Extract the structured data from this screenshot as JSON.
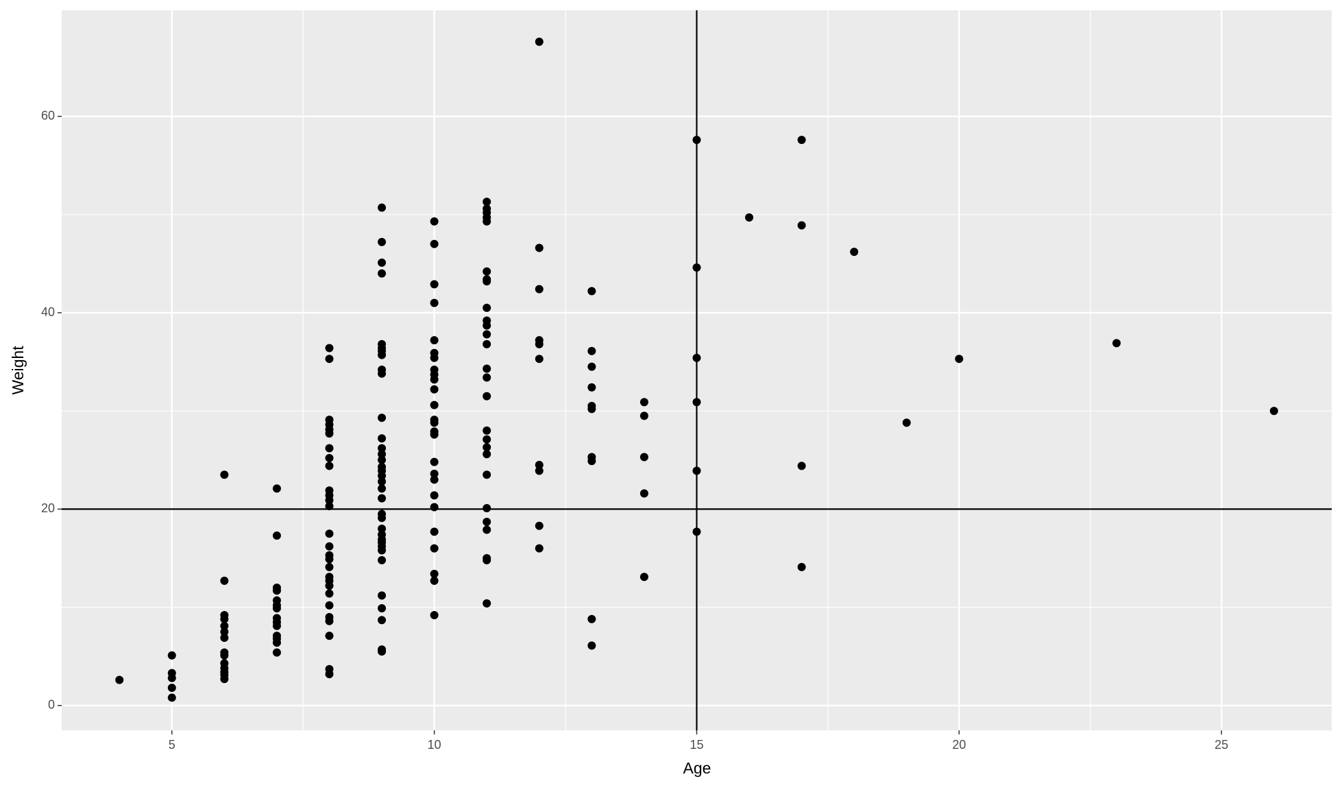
{
  "chart_data": {
    "type": "scatter",
    "x_label": "Age",
    "y_label": "Weight",
    "x": [
      4,
      5,
      5,
      5,
      5,
      5,
      6,
      6,
      6,
      6,
      6,
      6,
      6,
      6,
      6,
      6,
      6,
      6,
      6,
      6,
      7,
      7,
      7,
      7,
      7,
      7,
      7,
      7,
      7,
      7,
      7,
      7,
      7,
      7,
      8,
      8,
      8,
      8,
      8,
      8,
      8,
      8,
      8,
      8,
      8,
      8,
      8,
      8,
      8,
      8,
      8,
      8,
      8,
      8,
      8,
      8,
      8,
      8,
      8,
      8,
      8,
      8,
      9,
      9,
      9,
      9,
      9,
      9,
      9,
      9,
      9,
      9,
      9,
      9,
      9,
      9,
      9,
      9,
      9,
      9,
      9,
      9,
      9,
      9,
      9,
      9,
      9,
      9,
      9,
      9,
      9,
      9,
      9,
      9,
      9,
      9,
      9,
      10,
      10,
      10,
      10,
      10,
      10,
      10,
      10,
      10,
      10,
      10,
      10,
      10,
      10,
      10,
      10,
      10,
      10,
      10,
      10,
      10,
      10,
      10,
      10,
      10,
      10,
      11,
      11,
      11,
      11,
      11,
      11,
      11,
      11,
      11,
      11,
      11,
      11,
      11,
      11,
      11,
      11,
      11,
      11,
      11,
      11,
      11,
      11,
      11,
      11,
      11,
      11,
      11,
      12,
      12,
      12,
      12,
      12,
      12,
      12,
      12,
      12,
      12,
      13,
      13,
      13,
      13,
      13,
      13,
      13,
      13,
      13,
      13,
      14,
      14,
      14,
      14,
      14,
      15,
      15,
      15,
      15,
      15,
      15,
      16,
      17,
      17,
      17,
      17,
      18,
      19,
      20,
      23,
      26
    ],
    "values": [
      2.6,
      5.1,
      3.3,
      2.8,
      1.8,
      0.8,
      23.5,
      12.7,
      9.2,
      8.8,
      8.1,
      7.5,
      6.9,
      5.4,
      5.1,
      4.3,
      3.8,
      3.4,
      3.1,
      2.7,
      22.1,
      17.3,
      12.0,
      11.7,
      10.7,
      10.2,
      9.9,
      8.9,
      8.5,
      8.1,
      7.1,
      6.8,
      6.4,
      5.4,
      36.4,
      35.3,
      29.1,
      28.6,
      28.1,
      27.7,
      26.2,
      25.2,
      24.4,
      21.9,
      21.4,
      20.9,
      20.3,
      17.5,
      16.2,
      15.3,
      14.9,
      14.1,
      13.1,
      12.7,
      12.2,
      11.4,
      10.2,
      9.0,
      8.6,
      7.1,
      3.7,
      3.2,
      50.7,
      47.2,
      45.1,
      44.0,
      36.8,
      36.4,
      36.1,
      35.7,
      34.2,
      33.8,
      29.3,
      27.2,
      26.2,
      25.6,
      25.0,
      24.3,
      23.9,
      23.4,
      22.8,
      22.1,
      21.1,
      19.5,
      19.1,
      18.0,
      17.4,
      16.9,
      16.6,
      16.2,
      15.8,
      14.8,
      11.2,
      9.9,
      8.7,
      5.7,
      5.5,
      49.3,
      47.0,
      42.9,
      41.0,
      37.2,
      35.9,
      35.4,
      34.2,
      33.7,
      33.2,
      32.2,
      30.6,
      29.1,
      28.8,
      27.9,
      27.6,
      24.8,
      23.6,
      23.0,
      21.4,
      20.2,
      17.7,
      16.0,
      13.4,
      12.7,
      9.2,
      51.3,
      50.6,
      50.2,
      49.7,
      49.3,
      44.2,
      43.4,
      43.2,
      40.5,
      39.2,
      38.7,
      37.8,
      36.8,
      34.3,
      33.4,
      31.5,
      28.0,
      27.1,
      26.3,
      25.6,
      23.5,
      20.1,
      18.7,
      17.9,
      15.0,
      14.8,
      10.4,
      67.6,
      46.6,
      42.4,
      37.2,
      36.8,
      35.3,
      24.5,
      23.9,
      18.3,
      16.0,
      42.2,
      36.1,
      34.5,
      32.4,
      30.5,
      30.2,
      25.3,
      24.9,
      8.8,
      6.1,
      30.9,
      29.5,
      25.3,
      21.6,
      13.1,
      57.6,
      44.6,
      35.4,
      30.9,
      23.9,
      17.7,
      49.7,
      57.6,
      48.9,
      24.4,
      14.1,
      46.2,
      28.8,
      35.3,
      36.9,
      30.0
    ],
    "color": "#000000",
    "xlim": [
      2.9,
      27.1
    ],
    "xticks": [
      5,
      10,
      15,
      20,
      25
    ],
    "ylim": [
      -2.53,
      70.8
    ],
    "yticks": [
      0,
      20,
      40,
      60
    ],
    "vline": 15,
    "hline": 20,
    "grid": true
  }
}
